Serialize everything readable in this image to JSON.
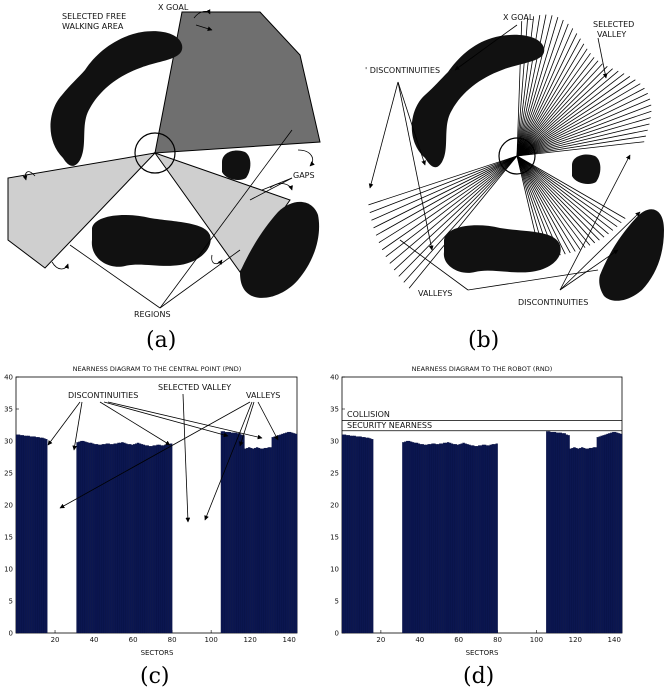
{
  "panel_a": {
    "caption": "(a)",
    "labels": {
      "x_goal": "X GOAL",
      "selected_area_line1": "SELECTED FREE",
      "selected_area_line2": "WALKING AREA",
      "gaps": "GAPS",
      "regions": "REGIONS"
    }
  },
  "panel_b": {
    "caption": "(b)",
    "labels": {
      "x_goal": "X GOAL",
      "selected_valley_line1": "SELECTED",
      "selected_valley_line2": "VALLEY",
      "discontinuities_top": "' DISCONTINUITIES",
      "valleys": "VALLEYS",
      "discontinuities_bottom": "DISCONTINUITIES"
    }
  },
  "panel_c": {
    "caption": "(c)",
    "annotations": {
      "discontinuities": "DISCONTINUITIES",
      "selected_valley": "SELECTED VALLEY",
      "valleys": "VALLEYS"
    }
  },
  "panel_d": {
    "caption": "(d)",
    "annotations": {
      "collision": "COLLISION",
      "security_nearness": "SECURITY NEARNESS"
    }
  },
  "colors": {
    "bar": "#0b1650",
    "obstacle": "#111111",
    "dark_sector": "#6f6f6f",
    "light_sector": "#cfcfcf"
  },
  "chart_data": [
    {
      "type": "bar",
      "title": "NEARNESS DIAGRAM TO THE CENTRAL POINT (PND)",
      "xlabel": "SECTORS",
      "ylabel": "",
      "xlim": [
        0,
        144
      ],
      "ylim": [
        0,
        40
      ],
      "xticks": [
        20,
        40,
        60,
        80,
        100,
        120,
        140
      ],
      "yticks": [
        0,
        5,
        10,
        15,
        20,
        25,
        30,
        35,
        40
      ],
      "bar_groups": [
        {
          "start": 1,
          "end": 16,
          "values": [
            31.0,
            31.0,
            30.9,
            30.9,
            30.8,
            30.8,
            30.8,
            30.7,
            30.7,
            30.7,
            30.6,
            30.6,
            30.5,
            30.5,
            30.4,
            30.3
          ]
        },
        {
          "start": 32,
          "end": 80,
          "values": [
            29.8,
            29.9,
            30.0,
            30.0,
            29.9,
            29.8,
            29.7,
            29.7,
            29.6,
            29.5,
            29.5,
            29.4,
            29.4,
            29.5,
            29.5,
            29.6,
            29.6,
            29.5,
            29.5,
            29.6,
            29.6,
            29.7,
            29.7,
            29.8,
            29.7,
            29.6,
            29.5,
            29.5,
            29.4,
            29.5,
            29.6,
            29.7,
            29.6,
            29.5,
            29.4,
            29.3,
            29.3,
            29.2,
            29.2,
            29.3,
            29.3,
            29.4,
            29.4,
            29.3,
            29.3,
            29.4,
            29.5,
            29.5,
            29.6
          ]
        },
        {
          "start": 106,
          "end": 144,
          "values": [
            31.5,
            31.5,
            31.4,
            31.4,
            31.4,
            31.3,
            31.3,
            31.3,
            31.2,
            31.2,
            31.0,
            30.9,
            28.8,
            28.9,
            29.0,
            28.9,
            28.8,
            28.9,
            29.0,
            28.9,
            28.8,
            28.8,
            28.9,
            28.9,
            29.0,
            29.0,
            30.6,
            30.7,
            30.8,
            30.9,
            31.0,
            31.1,
            31.2,
            31.3,
            31.4,
            31.4,
            31.3,
            31.2,
            31.1
          ]
        }
      ]
    },
    {
      "type": "bar",
      "title": "NEARNESS DIAGRAM TO THE ROBOT (RND)",
      "xlabel": "SECTORS",
      "ylabel": "",
      "xlim": [
        0,
        144
      ],
      "ylim": [
        0,
        40
      ],
      "xticks": [
        20,
        40,
        60,
        80,
        100,
        120,
        140
      ],
      "yticks": [
        0,
        5,
        10,
        15,
        20,
        25,
        30,
        35,
        40
      ],
      "thresholds": [
        {
          "name": "COLLISION",
          "value": 33.2
        },
        {
          "name": "SECURITY NEARNESS",
          "value": 31.6
        }
      ],
      "bar_groups": [
        {
          "start": 1,
          "end": 16,
          "values": [
            31.0,
            31.0,
            30.9,
            30.9,
            30.8,
            30.8,
            30.8,
            30.7,
            30.7,
            30.7,
            30.6,
            30.6,
            30.5,
            30.5,
            30.4,
            30.3
          ]
        },
        {
          "start": 32,
          "end": 80,
          "values": [
            29.8,
            29.9,
            30.0,
            30.0,
            29.9,
            29.8,
            29.7,
            29.7,
            29.6,
            29.5,
            29.5,
            29.4,
            29.4,
            29.5,
            29.5,
            29.6,
            29.6,
            29.5,
            29.5,
            29.6,
            29.6,
            29.7,
            29.7,
            29.8,
            29.7,
            29.6,
            29.5,
            29.5,
            29.4,
            29.5,
            29.6,
            29.7,
            29.6,
            29.5,
            29.4,
            29.3,
            29.3,
            29.2,
            29.2,
            29.3,
            29.3,
            29.4,
            29.4,
            29.3,
            29.3,
            29.4,
            29.5,
            29.5,
            29.6
          ]
        },
        {
          "start": 106,
          "end": 144,
          "values": [
            31.5,
            31.5,
            31.4,
            31.4,
            31.4,
            31.3,
            31.3,
            31.3,
            31.2,
            31.2,
            31.0,
            30.9,
            28.8,
            28.9,
            29.0,
            28.9,
            28.8,
            28.9,
            29.0,
            28.9,
            28.8,
            28.8,
            28.9,
            28.9,
            29.0,
            29.0,
            30.6,
            30.7,
            30.8,
            30.9,
            31.0,
            31.1,
            31.2,
            31.3,
            31.4,
            31.4,
            31.3,
            31.2,
            31.1
          ]
        }
      ]
    }
  ]
}
